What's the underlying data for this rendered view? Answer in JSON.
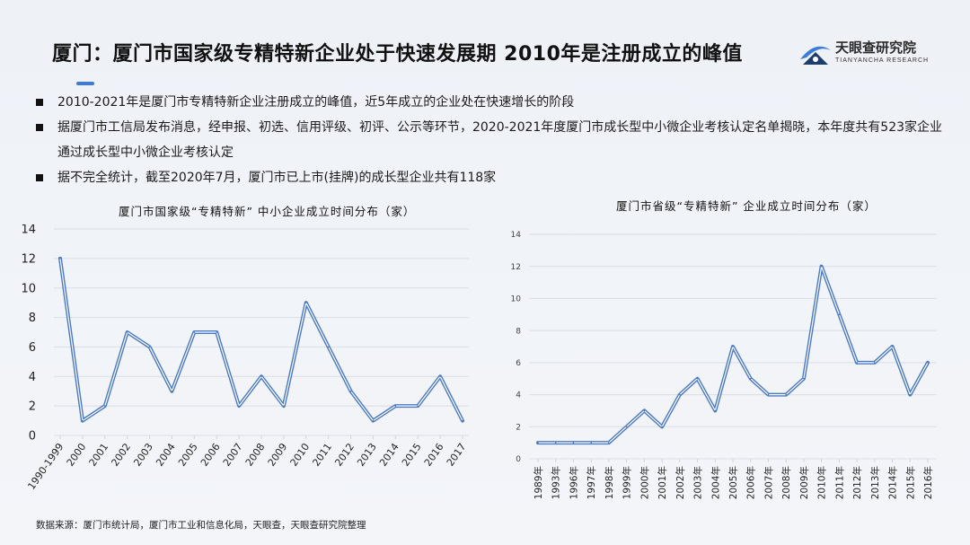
{
  "title": "厦门：厦门市国家级专精特新企业处于快速发展期 2010年是注册成立的峰值",
  "brand": {
    "name": "天眼查研究院",
    "sub": "TIANYANCHA RESEARCH",
    "logo_icon": "tianyancha-logo-icon"
  },
  "bullets": [
    "2010-2021年是厦门市专精特新企业注册成立的峰值，近5年成立的企业处在快速增长的阶段",
    "据厦门市工信局发布消息，经申报、初选、信用评级、初评、公示等环节，2020-2021年度厦门市成长型中小微企业考核认定名单揭晓，本年度共有523家企业通过成长型中小微企业考核认定",
    "据不完全统计，截至2020年7月，厦门市已上市(挂牌)的成长型企业共有118家"
  ],
  "source": "数据来源：厦门市统计局，厦门市工业和信息化局，天眼查，天眼查研究院整理",
  "colors": {
    "line": "#4a78c2",
    "accent": "#3b7bd9",
    "grid": "#d9dde5"
  },
  "chart_data": [
    {
      "type": "line",
      "title": "厦门市国家级“专精特新” 中小企业成立时间分布（家）",
      "categories": [
        "1990-1999",
        "2000",
        "2001",
        "2002",
        "2003",
        "2004",
        "2005",
        "2006",
        "2007",
        "2008",
        "2009",
        "2010",
        "2011",
        "2012",
        "2013",
        "2014",
        "2015",
        "2016",
        "2017"
      ],
      "values": [
        12,
        1,
        2,
        7,
        6,
        3,
        7,
        7,
        2,
        4,
        2,
        9,
        6,
        3,
        1,
        2,
        2,
        4,
        1
      ],
      "ylim": [
        0,
        14
      ],
      "yticks": [
        0,
        2,
        4,
        6,
        8,
        10,
        12,
        14
      ],
      "grid": "horizontal"
    },
    {
      "type": "line",
      "title": "厦门市省级“专精特新” 企业成立时间分布（家）",
      "categories": [
        "1989年",
        "1993年",
        "1996年",
        "1997年",
        "1998年",
        "1999年",
        "2000年",
        "2001年",
        "2002年",
        "2003年",
        "2004年",
        "2005年",
        "2006年",
        "2007年",
        "2008年",
        "2009年",
        "2010年",
        "2011年",
        "2012年",
        "2013年",
        "2014年",
        "2015年",
        "2016年"
      ],
      "values": [
        1,
        1,
        1,
        1,
        1,
        2,
        3,
        2,
        4,
        5,
        3,
        7,
        5,
        4,
        4,
        5,
        12,
        9,
        6,
        6,
        7,
        4,
        6
      ],
      "ylim": [
        0,
        14
      ],
      "yticks": [
        0,
        2,
        4,
        6,
        8,
        10,
        12,
        14
      ],
      "grid": "horizontal"
    }
  ]
}
